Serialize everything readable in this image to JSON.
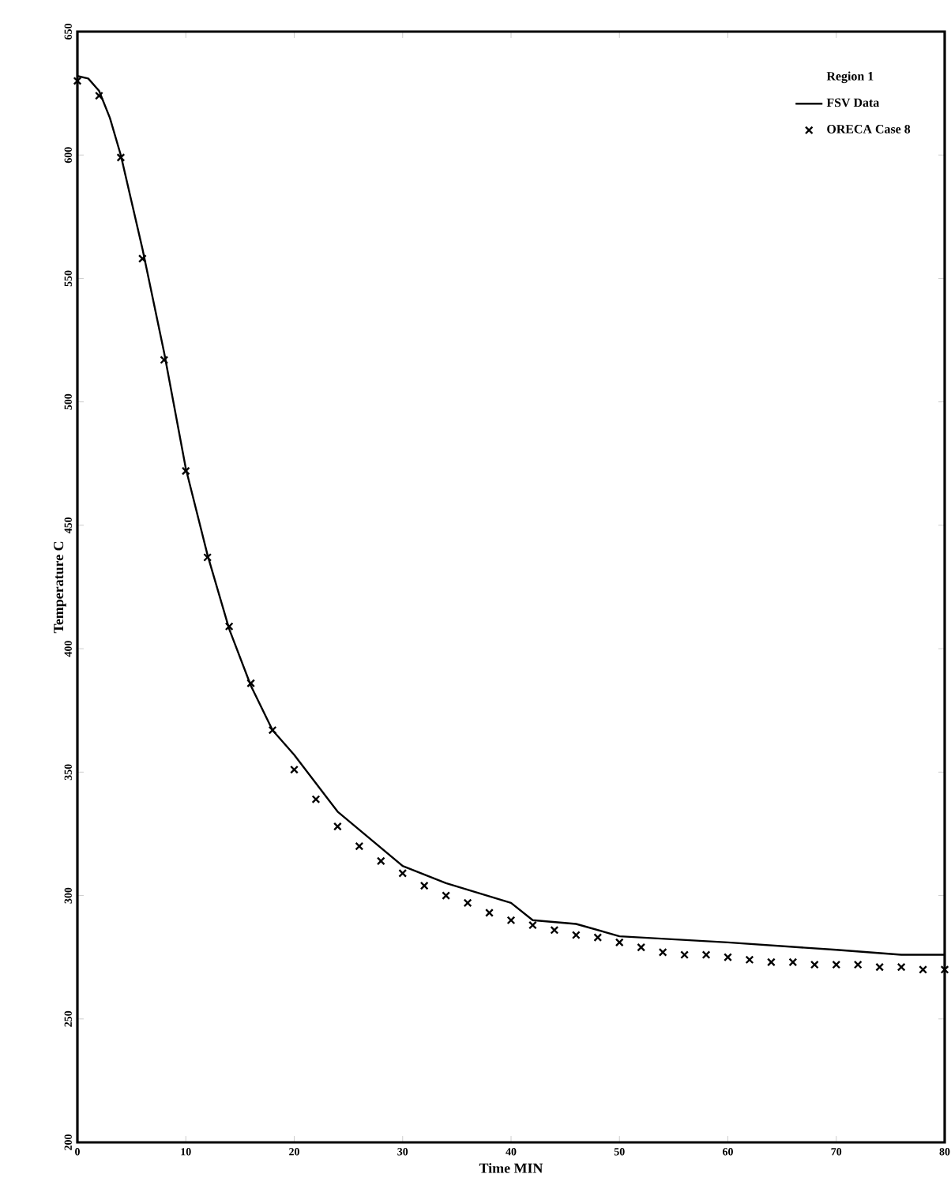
{
  "chart_data": {
    "type": "line",
    "xlabel": "Time MIN",
    "ylabel": "Temperature C",
    "legend_title": "Region 1",
    "legend": "top right",
    "xlim": [
      0,
      80
    ],
    "ylim": [
      200,
      650
    ],
    "xticks": [
      0,
      10,
      20,
      30,
      40,
      50,
      60,
      70,
      80
    ],
    "yticks": [
      200,
      250,
      300,
      350,
      400,
      450,
      500,
      550,
      600,
      650
    ],
    "series": [
      {
        "name": "FSV Data",
        "color": "#000000",
        "line_style": "solid",
        "x": [
          0,
          1,
          2,
          3,
          4,
          6,
          8,
          10,
          12,
          14,
          16,
          18,
          20,
          24,
          30,
          34,
          37,
          40,
          42,
          46,
          50,
          60,
          70,
          76,
          80
        ],
        "values": [
          632,
          631,
          626,
          615,
          600,
          562,
          520,
          473,
          438,
          408,
          385,
          367,
          357,
          334,
          312,
          305,
          301,
          297,
          290,
          288.5,
          283.5,
          281,
          278,
          276,
          276
        ]
      },
      {
        "name": "ORECA Case 8",
        "type": "scatter",
        "color": "#000000",
        "marker": "cross",
        "x": [
          0,
          2,
          4,
          6,
          8,
          10,
          12,
          14,
          16,
          18,
          20,
          22,
          24,
          26,
          28,
          30,
          32,
          34,
          36,
          38,
          40,
          42,
          44,
          46,
          48,
          50,
          52,
          54,
          56,
          58,
          60,
          62,
          64,
          66,
          68,
          70,
          72,
          74,
          76,
          78,
          80
        ],
        "values": [
          630,
          624,
          599,
          558,
          517,
          472,
          437,
          409,
          386,
          367,
          351,
          339,
          328,
          320,
          314,
          309,
          304,
          300,
          297,
          293,
          290,
          288,
          286,
          284,
          283,
          281,
          279,
          277,
          276,
          276,
          275,
          274,
          273,
          273,
          272,
          272,
          272,
          271,
          271,
          270,
          270
        ]
      }
    ]
  }
}
